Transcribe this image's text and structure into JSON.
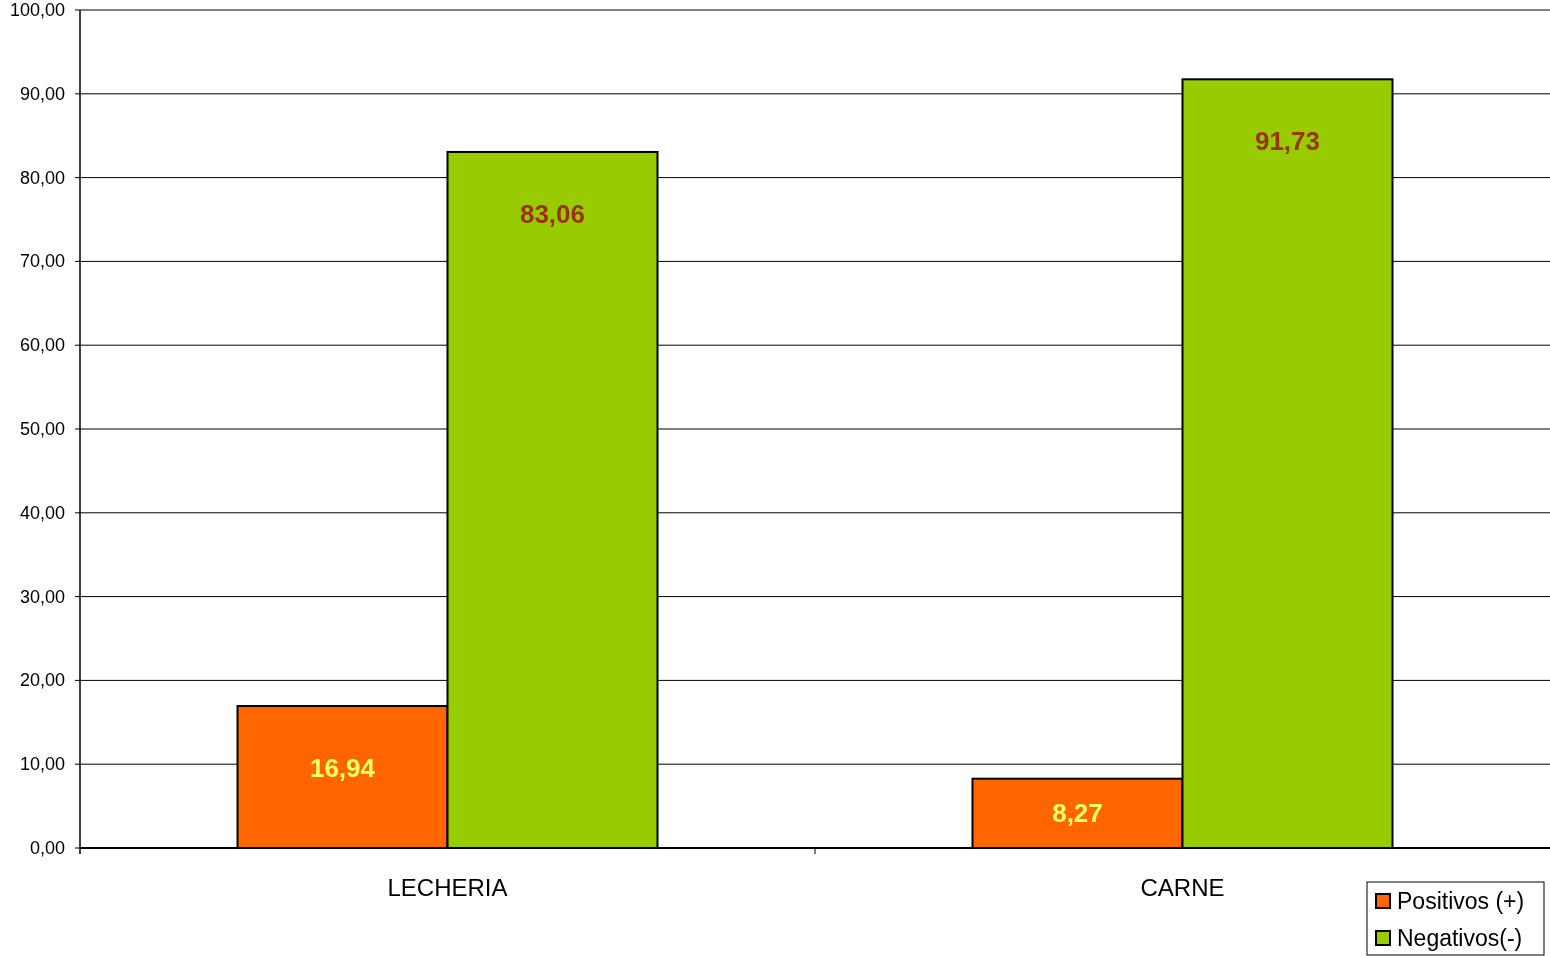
{
  "chart_data": {
    "type": "bar",
    "categories": [
      "LECHERIA",
      "CARNE"
    ],
    "series": [
      {
        "name": "Positivos (+)",
        "color": "#ff6600",
        "values": [
          16.94,
          8.27
        ],
        "value_labels": [
          "16,94",
          "8,27"
        ]
      },
      {
        "name": "Negativos(-)",
        "color": "#99cc00",
        "values": [
          83.06,
          91.73
        ],
        "value_labels": [
          "83,06",
          "91,73"
        ]
      }
    ],
    "ylim": [
      0,
      100
    ],
    "yticks": [
      {
        "value": 0,
        "label": "0,00"
      },
      {
        "value": 10,
        "label": "10,00"
      },
      {
        "value": 20,
        "label": "20,00"
      },
      {
        "value": 30,
        "label": "30,00"
      },
      {
        "value": 40,
        "label": "40,00"
      },
      {
        "value": 50,
        "label": "50,00"
      },
      {
        "value": 60,
        "label": "60,00"
      },
      {
        "value": 70,
        "label": "70,00"
      },
      {
        "value": 80,
        "label": "80,00"
      },
      {
        "value": 90,
        "label": "90,00"
      },
      {
        "value": 100,
        "label": "100,00"
      }
    ],
    "grid": "y",
    "legend": "bottom right"
  }
}
